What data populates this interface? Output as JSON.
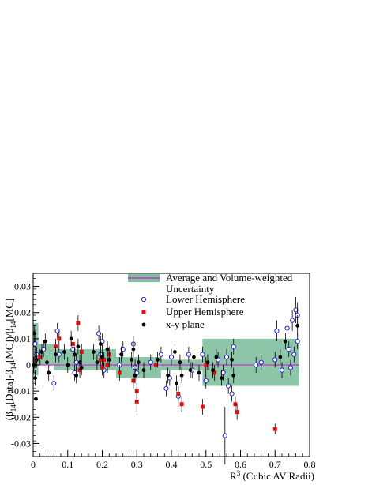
{
  "chart_data": {
    "type": "scatter",
    "xlabel_html": [
      "R",
      "3",
      " (Cubic AV Radii)"
    ],
    "ylabel_parts": [
      "(",
      "β",
      "14",
      "[Data]-",
      "β",
      "14",
      "[MC])/",
      "β",
      "14",
      "[MC]"
    ],
    "xlim": [
      0,
      0.8
    ],
    "ylim": [
      -0.035,
      0.035
    ],
    "x_ticks": [
      0,
      0.1,
      0.2,
      0.3,
      0.4,
      0.5,
      0.6,
      0.7,
      0.8
    ],
    "x_tick_labels": [
      "0",
      "0.1",
      "0.2",
      "0.3",
      "0.4",
      "0.5",
      "0.6",
      "0.7",
      "0.8"
    ],
    "y_ticks": [
      -0.03,
      -0.02,
      -0.01,
      0,
      0.01,
      0.02,
      0.03
    ],
    "y_tick_labels": [
      "-0.03",
      "-0.02",
      "-0.01",
      "0",
      "0.01",
      "0.02",
      "0.03"
    ],
    "legend": {
      "placement": "top-right",
      "entries": [
        {
          "label": "Average and Volume-weighted Uncertainty",
          "label_line1": "Average and Volume-weighted",
          "label_line2": "Uncertainty",
          "kind": "band",
          "color": "#7fbf9f",
          "line_color": "#cc33cc"
        },
        {
          "label": "Lower Hemisphere",
          "kind": "open-circle",
          "color": "#2222cc"
        },
        {
          "label": "Upper Hemisphere",
          "kind": "square",
          "color": "#dd1111"
        },
        {
          "label": "x-y plane",
          "kind": "filled-circle",
          "color": "#000000"
        }
      ]
    },
    "average_line": {
      "y": 0.0,
      "color": "#cc33cc"
    },
    "bands": [
      {
        "x0": 0.0,
        "x1": 0.015,
        "y0": -0.004,
        "y1": 0.016
      },
      {
        "x0": 0.015,
        "x1": 0.06,
        "y0": 0.0,
        "y1": 0.008
      },
      {
        "x0": 0.06,
        "x1": 0.24,
        "y0": -0.002,
        "y1": 0.006
      },
      {
        "x0": 0.24,
        "x1": 0.37,
        "y0": -0.005,
        "y1": 0.003
      },
      {
        "x0": 0.37,
        "x1": 0.49,
        "y0": -0.002,
        "y1": 0.002
      },
      {
        "x0": 0.49,
        "x1": 0.77,
        "y0": -0.008,
        "y1": 0.01
      }
    ],
    "band_color": "#7fbf9f",
    "series": [
      {
        "name": "Lower Hemisphere",
        "marker": "open-circle",
        "color": "#2222cc",
        "points": [
          {
            "x": 0.005,
            "y": 0.008,
            "e": 0.003
          },
          {
            "x": 0.01,
            "y": 0.004,
            "e": 0.003
          },
          {
            "x": 0.03,
            "y": 0.006,
            "e": 0.003
          },
          {
            "x": 0.06,
            "y": -0.007,
            "e": 0.003
          },
          {
            "x": 0.07,
            "y": 0.013,
            "e": 0.003
          },
          {
            "x": 0.075,
            "y": 0.004,
            "e": 0.003
          },
          {
            "x": 0.115,
            "y": 0.006,
            "e": 0.003
          },
          {
            "x": 0.12,
            "y": -0.003,
            "e": 0.003
          },
          {
            "x": 0.125,
            "y": 0.001,
            "e": 0.003
          },
          {
            "x": 0.19,
            "y": 0.012,
            "e": 0.003
          },
          {
            "x": 0.195,
            "y": 0.004,
            "e": 0.003
          },
          {
            "x": 0.2,
            "y": 0.009,
            "e": 0.003
          },
          {
            "x": 0.205,
            "y": -0.002,
            "e": 0.003
          },
          {
            "x": 0.25,
            "y": 0.0,
            "e": 0.003
          },
          {
            "x": 0.26,
            "y": 0.006,
            "e": 0.003
          },
          {
            "x": 0.29,
            "y": 0.008,
            "e": 0.003
          },
          {
            "x": 0.295,
            "y": -0.001,
            "e": 0.003
          },
          {
            "x": 0.3,
            "y": -0.003,
            "e": 0.003
          },
          {
            "x": 0.34,
            "y": 0.001,
            "e": 0.003
          },
          {
            "x": 0.37,
            "y": 0.004,
            "e": 0.003
          },
          {
            "x": 0.385,
            "y": -0.009,
            "e": 0.003
          },
          {
            "x": 0.395,
            "y": -0.005,
            "e": 0.003
          },
          {
            "x": 0.4,
            "y": 0.003,
            "e": 0.003
          },
          {
            "x": 0.42,
            "y": -0.012,
            "e": 0.004
          },
          {
            "x": 0.45,
            "y": 0.004,
            "e": 0.003
          },
          {
            "x": 0.46,
            "y": -0.002,
            "e": 0.003
          },
          {
            "x": 0.49,
            "y": 0.004,
            "e": 0.003
          },
          {
            "x": 0.5,
            "y": -0.006,
            "e": 0.003
          },
          {
            "x": 0.535,
            "y": 0.002,
            "e": 0.003
          },
          {
            "x": 0.55,
            "y": -0.003,
            "e": 0.003
          },
          {
            "x": 0.555,
            "y": -0.027,
            "e": 0.011
          },
          {
            "x": 0.56,
            "y": 0.003,
            "e": 0.003
          },
          {
            "x": 0.565,
            "y": -0.008,
            "e": 0.003
          },
          {
            "x": 0.575,
            "y": -0.011,
            "e": 0.003
          },
          {
            "x": 0.58,
            "y": 0.007,
            "e": 0.003
          },
          {
            "x": 0.645,
            "y": 0.0,
            "e": 0.003
          },
          {
            "x": 0.66,
            "y": 0.001,
            "e": 0.003
          },
          {
            "x": 0.7,
            "y": 0.002,
            "e": 0.003
          },
          {
            "x": 0.705,
            "y": 0.013,
            "e": 0.004
          },
          {
            "x": 0.72,
            "y": -0.002,
            "e": 0.003
          },
          {
            "x": 0.735,
            "y": 0.014,
            "e": 0.004
          },
          {
            "x": 0.74,
            "y": 0.006,
            "e": 0.003
          },
          {
            "x": 0.745,
            "y": -0.001,
            "e": 0.003
          },
          {
            "x": 0.75,
            "y": 0.017,
            "e": 0.004
          },
          {
            "x": 0.755,
            "y": 0.004,
            "e": 0.003
          },
          {
            "x": 0.76,
            "y": 0.021,
            "e": 0.005
          },
          {
            "x": 0.765,
            "y": 0.019,
            "e": 0.005
          },
          {
            "x": 0.765,
            "y": 0.009,
            "e": 0.003
          }
        ]
      },
      {
        "name": "Upper Hemisphere",
        "marker": "square",
        "color": "#dd1111",
        "points": [
          {
            "x": 0.005,
            "y": 0.002,
            "e": 0.003
          },
          {
            "x": 0.02,
            "y": 0.003,
            "e": 0.003
          },
          {
            "x": 0.065,
            "y": 0.007,
            "e": 0.003
          },
          {
            "x": 0.075,
            "y": 0.01,
            "e": 0.003
          },
          {
            "x": 0.115,
            "y": 0.008,
            "e": 0.003
          },
          {
            "x": 0.13,
            "y": 0.016,
            "e": 0.003
          },
          {
            "x": 0.135,
            "y": -0.002,
            "e": 0.003
          },
          {
            "x": 0.14,
            "y": 0.005,
            "e": 0.003
          },
          {
            "x": 0.195,
            "y": 0.002,
            "e": 0.003
          },
          {
            "x": 0.2,
            "y": -0.001,
            "e": 0.003
          },
          {
            "x": 0.205,
            "y": 0.002,
            "e": 0.003
          },
          {
            "x": 0.215,
            "y": 0.0,
            "e": 0.003
          },
          {
            "x": 0.22,
            "y": 0.004,
            "e": 0.003
          },
          {
            "x": 0.25,
            "y": -0.003,
            "e": 0.003
          },
          {
            "x": 0.29,
            "y": -0.006,
            "e": 0.003
          },
          {
            "x": 0.3,
            "y": -0.01,
            "e": 0.003
          },
          {
            "x": 0.3,
            "y": -0.014,
            "e": 0.004
          },
          {
            "x": 0.355,
            "y": 0.0,
            "e": 0.003
          },
          {
            "x": 0.42,
            "y": -0.011,
            "e": 0.003
          },
          {
            "x": 0.43,
            "y": -0.015,
            "e": 0.003
          },
          {
            "x": 0.49,
            "y": -0.016,
            "e": 0.003
          },
          {
            "x": 0.5,
            "y": 0.0,
            "e": 0.003
          },
          {
            "x": 0.525,
            "y": -0.003,
            "e": 0.003
          },
          {
            "x": 0.585,
            "y": -0.015,
            "e": 0.003
          },
          {
            "x": 0.59,
            "y": -0.018,
            "e": 0.003
          },
          {
            "x": 0.7,
            "y": -0.0245,
            "e": 0.002
          }
        ]
      },
      {
        "name": "x-y plane",
        "marker": "filled-circle",
        "color": "#000000",
        "points": [
          {
            "x": 0.002,
            "y": 0.0,
            "e": 0.003
          },
          {
            "x": 0.004,
            "y": 0.012,
            "e": 0.003
          },
          {
            "x": 0.006,
            "y": -0.005,
            "e": 0.003
          },
          {
            "x": 0.008,
            "y": -0.013,
            "e": 0.003
          },
          {
            "x": 0.01,
            "y": 0.002,
            "e": 0.003
          },
          {
            "x": 0.025,
            "y": 0.005,
            "e": 0.003
          },
          {
            "x": 0.035,
            "y": 0.009,
            "e": 0.003
          },
          {
            "x": 0.04,
            "y": 0.001,
            "e": 0.003
          },
          {
            "x": 0.045,
            "y": -0.003,
            "e": 0.003
          },
          {
            "x": 0.065,
            "y": 0.004,
            "e": 0.003
          },
          {
            "x": 0.09,
            "y": 0.005,
            "e": 0.003
          },
          {
            "x": 0.1,
            "y": 0.0,
            "e": 0.003
          },
          {
            "x": 0.11,
            "y": 0.01,
            "e": 0.003
          },
          {
            "x": 0.12,
            "y": 0.004,
            "e": 0.003
          },
          {
            "x": 0.125,
            "y": -0.004,
            "e": 0.003
          },
          {
            "x": 0.13,
            "y": 0.007,
            "e": 0.003
          },
          {
            "x": 0.135,
            "y": 0.001,
            "e": 0.003
          },
          {
            "x": 0.14,
            "y": -0.001,
            "e": 0.003
          },
          {
            "x": 0.175,
            "y": 0.005,
            "e": 0.003
          },
          {
            "x": 0.185,
            "y": 0.001,
            "e": 0.003
          },
          {
            "x": 0.195,
            "y": 0.008,
            "e": 0.003
          },
          {
            "x": 0.2,
            "y": 0.003,
            "e": 0.003
          },
          {
            "x": 0.215,
            "y": 0.006,
            "e": 0.003
          },
          {
            "x": 0.22,
            "y": 0.002,
            "e": 0.003
          },
          {
            "x": 0.255,
            "y": 0.004,
            "e": 0.003
          },
          {
            "x": 0.285,
            "y": 0.002,
            "e": 0.003
          },
          {
            "x": 0.29,
            "y": 0.006,
            "e": 0.003
          },
          {
            "x": 0.295,
            "y": -0.004,
            "e": 0.003
          },
          {
            "x": 0.305,
            "y": 0.001,
            "e": 0.003
          },
          {
            "x": 0.32,
            "y": -0.002,
            "e": 0.003
          },
          {
            "x": 0.36,
            "y": 0.002,
            "e": 0.003
          },
          {
            "x": 0.39,
            "y": -0.004,
            "e": 0.003
          },
          {
            "x": 0.41,
            "y": 0.005,
            "e": 0.003
          },
          {
            "x": 0.415,
            "y": -0.007,
            "e": 0.003
          },
          {
            "x": 0.425,
            "y": 0.001,
            "e": 0.003
          },
          {
            "x": 0.43,
            "y": -0.004,
            "e": 0.003
          },
          {
            "x": 0.455,
            "y": -0.002,
            "e": 0.003
          },
          {
            "x": 0.465,
            "y": 0.003,
            "e": 0.003
          },
          {
            "x": 0.48,
            "y": -0.003,
            "e": 0.003
          },
          {
            "x": 0.505,
            "y": 0.001,
            "e": 0.003
          },
          {
            "x": 0.52,
            "y": -0.002,
            "e": 0.003
          },
          {
            "x": 0.53,
            "y": 0.003,
            "e": 0.003
          },
          {
            "x": 0.545,
            "y": -0.005,
            "e": 0.003
          },
          {
            "x": 0.575,
            "y": 0.002,
            "e": 0.003
          },
          {
            "x": 0.58,
            "y": -0.004,
            "e": 0.003
          },
          {
            "x": 0.715,
            "y": 0.003,
            "e": 0.003
          },
          {
            "x": 0.73,
            "y": 0.009,
            "e": 0.003
          },
          {
            "x": 0.765,
            "y": 0.015,
            "e": 0.004
          }
        ]
      }
    ]
  }
}
